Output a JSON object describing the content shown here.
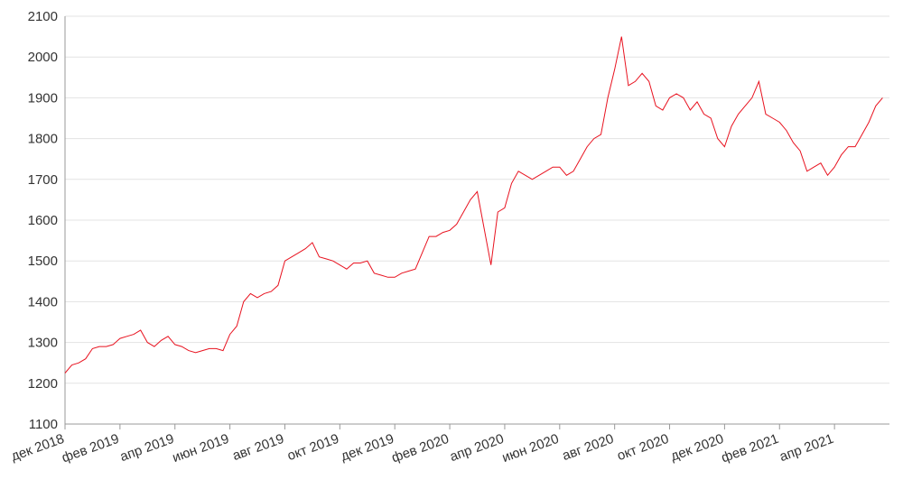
{
  "chart_data": {
    "type": "line",
    "categories": [
      "дек 2018",
      null,
      null,
      null,
      null,
      null,
      null,
      null,
      "фев 2019",
      null,
      null,
      null,
      null,
      null,
      null,
      null,
      "апр 2019",
      null,
      null,
      null,
      null,
      null,
      null,
      null,
      "июн 2019",
      null,
      null,
      null,
      null,
      null,
      null,
      null,
      "авг 2019",
      null,
      null,
      null,
      null,
      null,
      null,
      null,
      "окт 2019",
      null,
      null,
      null,
      null,
      null,
      null,
      null,
      "дек 2019",
      null,
      null,
      null,
      null,
      null,
      null,
      null,
      "фев 2020",
      null,
      null,
      null,
      null,
      null,
      null,
      null,
      "апр 2020",
      null,
      null,
      null,
      null,
      null,
      null,
      null,
      "июн 2020",
      null,
      null,
      null,
      null,
      null,
      null,
      null,
      "авг 2020",
      null,
      null,
      null,
      null,
      null,
      null,
      null,
      "окт 2020",
      null,
      null,
      null,
      null,
      null,
      null,
      null,
      "дек 2020",
      null,
      null,
      null,
      null,
      null,
      null,
      null,
      "фев 2021",
      null,
      null,
      null,
      null,
      null,
      null,
      null,
      "апр 2021",
      null,
      null,
      null,
      null,
      null,
      null,
      null
    ],
    "series": [
      {
        "color": "#e8121f",
        "values": [
          1225,
          1245,
          1250,
          1260,
          1285,
          1290,
          1290,
          1295,
          1310,
          1315,
          1320,
          1330,
          1300,
          1290,
          1305,
          1315,
          1295,
          1290,
          1280,
          1275,
          1280,
          1285,
          1285,
          1280,
          1320,
          1340,
          1400,
          1420,
          1410,
          1420,
          1425,
          1440,
          1500,
          1510,
          1520,
          1530,
          1545,
          1510,
          1505,
          1500,
          1490,
          1480,
          1495,
          1495,
          1500,
          1470,
          1465,
          1460,
          1460,
          1470,
          1475,
          1480,
          1520,
          1560,
          1560,
          1570,
          1575,
          1590,
          1620,
          1650,
          1670,
          1580,
          1490,
          1620,
          1630,
          1690,
          1720,
          1710,
          1700,
          1710,
          1720,
          1730,
          1730,
          1710,
          1720,
          1750,
          1780,
          1800,
          1810,
          1900,
          1970,
          2050,
          1930,
          1940,
          1960,
          1940,
          1880,
          1870,
          1900,
          1910,
          1900,
          1870,
          1890,
          1860,
          1850,
          1800,
          1780,
          1830,
          1860,
          1880,
          1900,
          1940,
          1860,
          1850,
          1840,
          1820,
          1790,
          1770,
          1720,
          1730,
          1740,
          1710,
          1730,
          1760,
          1780,
          1780,
          1810,
          1840,
          1880,
          1900
        ]
      }
    ],
    "ylim": [
      1100,
      2100
    ],
    "yticks": [
      1100,
      1200,
      1300,
      1400,
      1500,
      1600,
      1700,
      1800,
      1900,
      2000,
      2100
    ],
    "grid": true
  }
}
